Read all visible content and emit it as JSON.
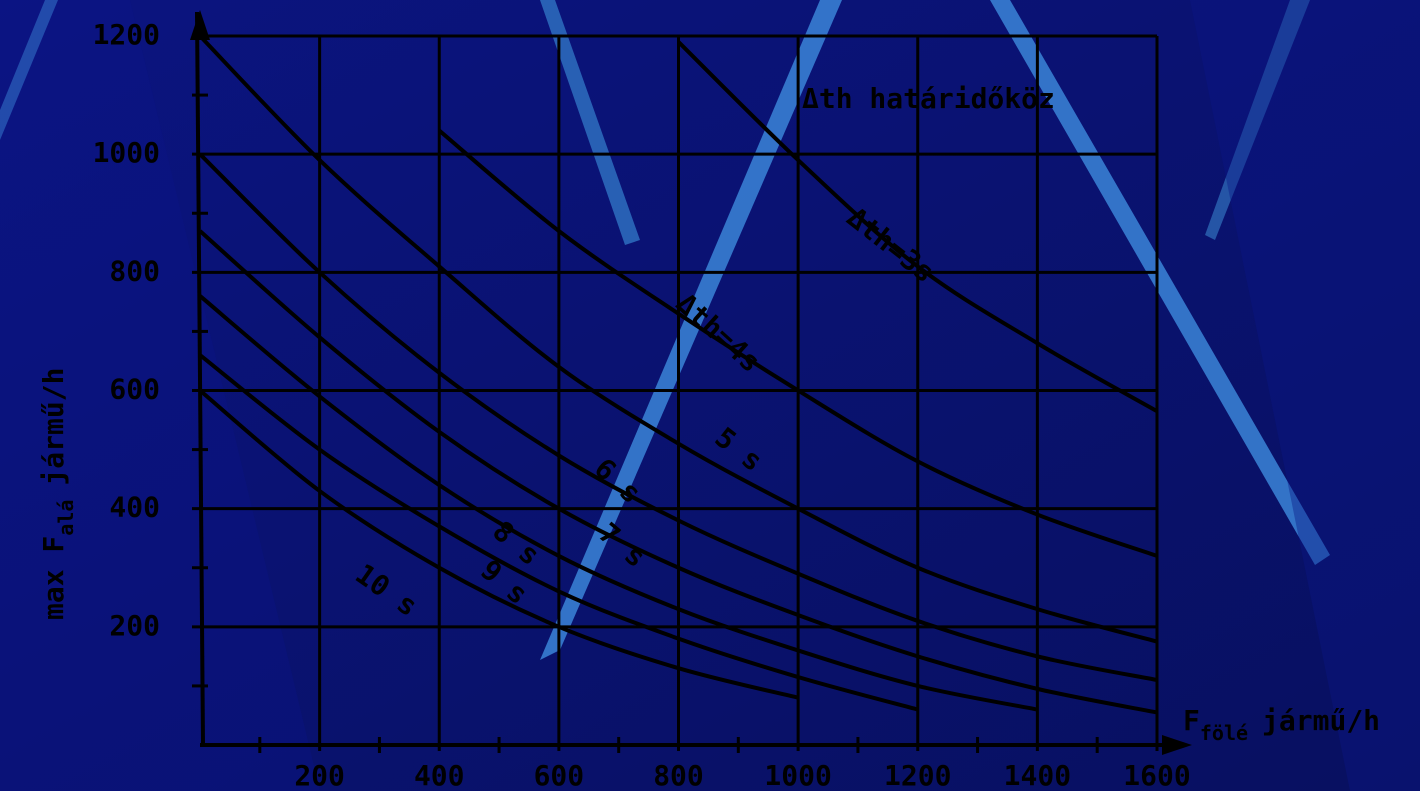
{
  "chart_data": {
    "type": "line",
    "annotation": "Δth határidőköz",
    "y_label": {
      "main": "max F",
      "sub": "alá",
      "unit": "jármű/h"
    },
    "x_label": {
      "main": "F",
      "sub": "fölé",
      "unit": "jármű/h"
    },
    "x": [
      0,
      200,
      400,
      600,
      800,
      1000,
      1200,
      1400,
      1600
    ],
    "xlim": [
      0,
      1600
    ],
    "ylim": [
      0,
      1200
    ],
    "xticks": [
      200,
      400,
      600,
      800,
      1000,
      1200,
      1400,
      1600
    ],
    "yticks": [
      200,
      400,
      600,
      800,
      1000,
      1200
    ],
    "grid": true,
    "series": [
      {
        "name": "Δth=3s",
        "color": "#000000",
        "values": [
          null,
          null,
          null,
          null,
          1190,
          990,
          810,
          680,
          565
        ]
      },
      {
        "name": "Δth=4s",
        "color": "#000000",
        "values": [
          null,
          null,
          1040,
          870,
          730,
          600,
          480,
          390,
          320
        ]
      },
      {
        "name": "5 s",
        "color": "#000000",
        "values": [
          1200,
          990,
          810,
          640,
          510,
          400,
          300,
          230,
          175
        ]
      },
      {
        "name": "6 s",
        "color": "#000000",
        "values": [
          1000,
          800,
          630,
          490,
          380,
          290,
          210,
          150,
          110
        ]
      },
      {
        "name": "7 s",
        "color": "#000000",
        "values": [
          870,
          690,
          530,
          400,
          300,
          220,
          150,
          95,
          55
        ]
      },
      {
        "name": "8 s",
        "color": "#000000",
        "values": [
          760,
          590,
          440,
          320,
          230,
          160,
          100,
          60,
          null
        ]
      },
      {
        "name": "9 s",
        "color": "#000000",
        "values": [
          660,
          500,
          370,
          260,
          180,
          115,
          60,
          null,
          null
        ]
      },
      {
        "name": "10 s",
        "color": "#000000",
        "values": [
          600,
          430,
          300,
          200,
          130,
          80,
          null,
          null,
          null
        ]
      }
    ]
  }
}
